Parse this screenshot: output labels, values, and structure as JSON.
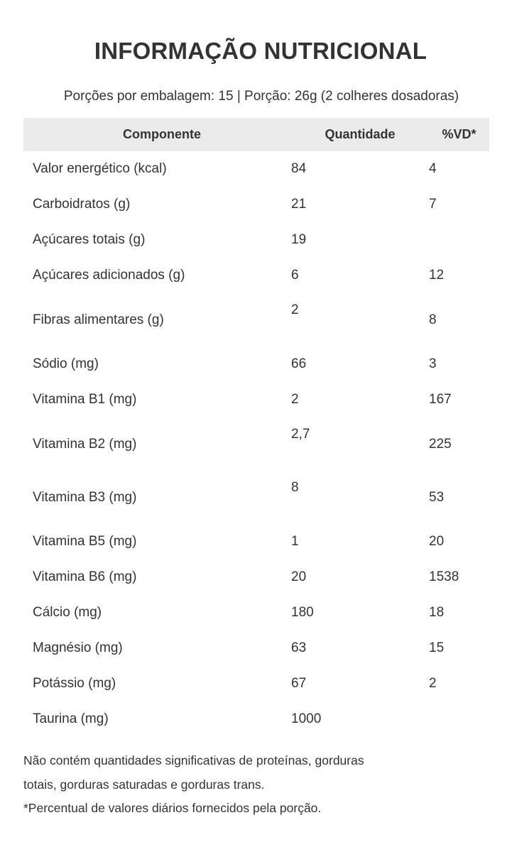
{
  "title": "INFORMAÇÃO NUTRICIONAL",
  "subtitle": "Porções por embalagem: 15 | Porção: 26g (2 colheres dosadoras)",
  "table": {
    "headers": [
      "Componente",
      "Quantidade",
      "%VD*"
    ],
    "rows": [
      {
        "component": "Valor energético (kcal)",
        "quantity": "84",
        "vd": "4"
      },
      {
        "component": "Carboidratos (g)",
        "quantity": "21",
        "vd": "7"
      },
      {
        "component": "Açúcares totais (g)",
        "quantity": "19",
        "vd": ""
      },
      {
        "component": "Açúcares adicionados (g)",
        "quantity": "6",
        "vd": "12"
      },
      {
        "component": "Fibras alimentares (g)",
        "quantity": "2",
        "vd": "8"
      },
      {
        "component": "Sódio (mg)",
        "quantity": "66",
        "vd": "3"
      },
      {
        "component": "Vitamina B1 (mg)",
        "quantity": "2",
        "vd": "167"
      },
      {
        "component": "Vitamina B2 (mg)",
        "quantity": "2,7",
        "vd": "225"
      },
      {
        "component": "Vitamina B3 (mg)",
        "quantity": "8",
        "vd": "53"
      },
      {
        "component": "Vitamina B5 (mg)",
        "quantity": "1",
        "vd": "20"
      },
      {
        "component": "Vitamina B6 (mg)",
        "quantity": "20",
        "vd": "1538"
      },
      {
        "component": "Cálcio (mg)",
        "quantity": "180",
        "vd": "18"
      },
      {
        "component": "Magnésio (mg)",
        "quantity": "63",
        "vd": "15"
      },
      {
        "component": "Potássio (mg)",
        "quantity": "67",
        "vd": "2"
      },
      {
        "component": "Taurina (mg)",
        "quantity": "1000",
        "vd": ""
      }
    ]
  },
  "notes": [
    "Não contém quantidades significativas de proteínas, gorduras",
    "totais, gorduras saturadas e gorduras trans.",
    "*Percentual de valores diários fornecidos pela porção."
  ]
}
